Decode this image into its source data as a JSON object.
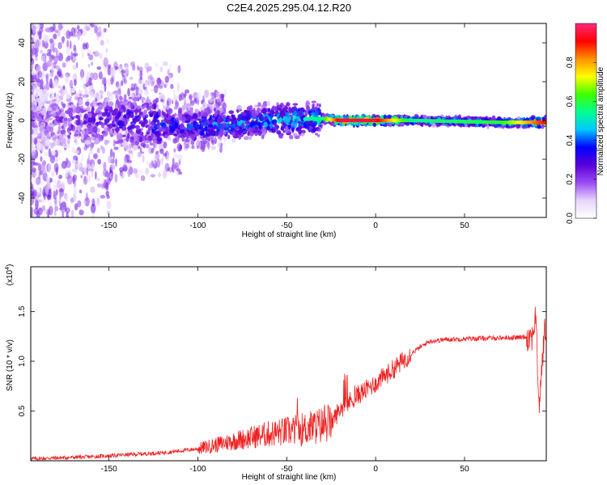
{
  "title": "C2E4.2025.295.04.12.R20",
  "chart_data": [
    {
      "type": "heatmap",
      "xlabel": "Height of straight line (km)",
      "ylabel": "Frequency (Hz)",
      "xlim": [
        -194,
        96
      ],
      "ylim": [
        -50,
        50
      ],
      "xticks": [
        -150,
        -100,
        -50,
        0,
        50
      ],
      "yticks": [
        -40,
        -20,
        0,
        20,
        40
      ],
      "colorbar": {
        "label": "Normalized spectral amplitude",
        "range": [
          0,
          1
        ],
        "ticks": [
          "0.0",
          "0.2",
          "0.4",
          "0.6",
          "0.8"
        ],
        "colors": [
          "#ffffff",
          "#e6d6fa",
          "#9a4cf2",
          "#5a00d8",
          "#0000ff",
          "#00c8ff",
          "#00ff90",
          "#40ff00",
          "#ffff00",
          "#ff9000",
          "#ff0000",
          "#ff2a80"
        ]
      },
      "ridge": [
        {
          "x": -190,
          "y": 0,
          "amp": 0.2
        },
        {
          "x": -150,
          "y": 0,
          "amp": 0.32
        },
        {
          "x": -100,
          "y": -3,
          "amp": 0.45
        },
        {
          "x": -60,
          "y": 0,
          "amp": 0.5
        },
        {
          "x": -30,
          "y": 1,
          "amp": 0.55
        },
        {
          "x": -20,
          "y": 0,
          "amp": 0.95
        },
        {
          "x": 0,
          "y": 0,
          "amp": 0.95
        },
        {
          "x": 20,
          "y": 0,
          "amp": 0.55
        },
        {
          "x": 70,
          "y": -1,
          "amp": 0.6
        },
        {
          "x": 95,
          "y": -1,
          "amp": 0.9
        }
      ]
    },
    {
      "type": "line",
      "xlabel": "Height of straight line (km)",
      "ylabel": "SNR (10 * v/v)",
      "y_multiplier": "(x10",
      "y_multiplier_exp": "4",
      "xlim": [
        -194,
        96
      ],
      "ylim": [
        0,
        1.95
      ],
      "xticks": [
        -150,
        -100,
        -50,
        0,
        50
      ],
      "yticks": [
        "0.5",
        "1.0",
        "1.5"
      ],
      "color": "#ee2222",
      "x": [
        -194,
        -160,
        -140,
        -120,
        -100,
        -80,
        -60,
        -40,
        -25,
        -20,
        -10,
        0,
        10,
        20,
        30,
        40,
        60,
        80,
        88,
        90,
        92,
        95
      ],
      "y": [
        0.02,
        0.04,
        0.06,
        0.08,
        0.12,
        0.2,
        0.27,
        0.32,
        0.38,
        0.52,
        0.66,
        0.78,
        0.92,
        1.08,
        1.2,
        1.22,
        1.23,
        1.24,
        1.25,
        1.45,
        0.55,
        1.3
      ]
    }
  ]
}
